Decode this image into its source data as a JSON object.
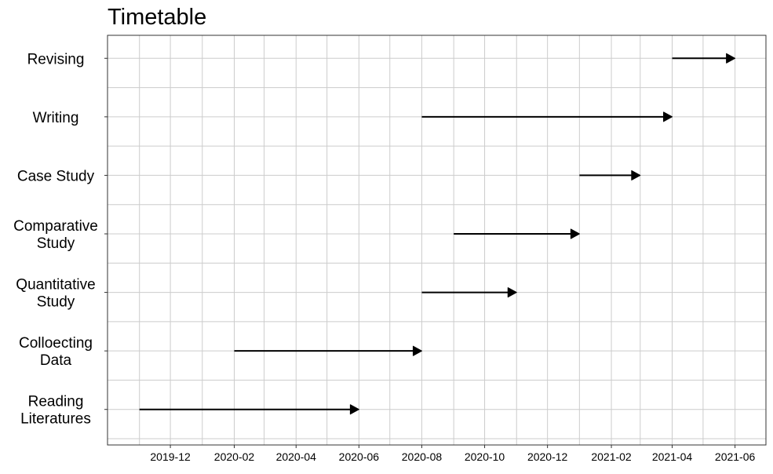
{
  "chart_data": {
    "type": "gantt",
    "title": "Timetable",
    "xlabel": "",
    "ylabel": "",
    "x_tick_labels": [
      "2019-12",
      "2020-02",
      "2020-04",
      "2020-06",
      "2020-08",
      "2020-10",
      "2020-12",
      "2021-02",
      "2021-04",
      "2021-06"
    ],
    "xlim": [
      "2019-10-01",
      "2021-07-01"
    ],
    "grid": true,
    "tasks": [
      {
        "label": "Revising",
        "start": "2021-04-01",
        "end": "2021-06-01"
      },
      {
        "label": "Writing",
        "start": "2020-08-01",
        "end": "2021-04-01"
      },
      {
        "label": "Case Study",
        "start": "2021-01-01",
        "end": "2021-03-01"
      },
      {
        "label": "Comparative\nStudy",
        "start": "2020-09-01",
        "end": "2021-01-01"
      },
      {
        "label": "Quantitative\nStudy",
        "start": "2020-08-01",
        "end": "2020-11-01"
      },
      {
        "label": "Colloecting\nData",
        "start": "2020-02-01",
        "end": "2020-08-01"
      },
      {
        "label": "Reading\nLiteratures",
        "start": "2019-11-01",
        "end": "2020-06-01"
      }
    ],
    "colors": {
      "arrow": "#000000",
      "grid": "#cccccc",
      "border": "#333333"
    }
  }
}
